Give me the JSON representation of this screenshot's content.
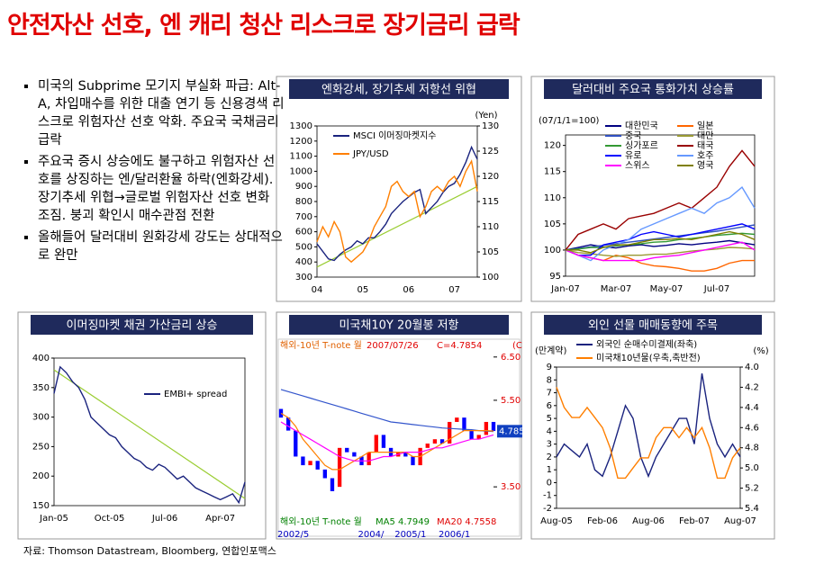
{
  "title": "안전자산 선호, 엔 캐리 청산 리스크로 장기금리 급락",
  "bullets": [
    "미국의 Subprime 모기지 부실화 파급: Alt-A, 차입매수를 위한 대출 연기 등 신용경색 리스크로 위험자산 선호 악화. 주요국 국채금리 급락",
    "주요국 증시 상승에도 불구하고 위험자산 선호를 상징하는 엔/달러환율 하락(엔화강세). 장기추세 위협→글로벌 위험자산 선호 변화 조짐. 붕괴 확인시 매수관점 전환",
    "올해들어 달러대비 원화강세 강도는 상대적으로 완만"
  ],
  "source": "자료: Thomson Datastream, Bloomberg, 연합인포맥스",
  "chart_data": [
    {
      "type": "line",
      "title": "엔화강세, 장기추세 저항선 위협",
      "y2_label": "(Yen)",
      "categories": [
        "04",
        null,
        null,
        null,
        null,
        null,
        null,
        null,
        "05",
        null,
        null,
        null,
        null,
        null,
        null,
        null,
        "06",
        null,
        null,
        null,
        null,
        null,
        null,
        null,
        "07",
        null,
        null,
        null,
        null
      ],
      "series": [
        {
          "name": "MSCI 이머징마켓지수",
          "color": "#1a237e",
          "values": [
            520,
            470,
            420,
            410,
            450,
            480,
            500,
            540,
            520,
            560,
            560,
            600,
            650,
            720,
            760,
            800,
            830,
            860,
            880,
            720,
            760,
            800,
            860,
            900,
            920,
            980,
            1060,
            1160,
            1080
          ]
        },
        {
          "name": "JPY/USD",
          "color": "#ff7f00",
          "axis": "y2",
          "values": [
            107,
            110,
            108,
            111,
            109,
            104,
            103,
            104,
            105,
            107,
            110,
            112,
            114,
            118,
            119,
            117,
            116,
            117,
            112,
            114,
            117,
            118,
            117,
            119,
            120,
            118,
            121,
            123,
            117
          ]
        }
      ],
      "trendline": {
        "color": "#9acd32",
        "axis": "y2",
        "values": [
          102,
          118
        ]
      },
      "ylim": [
        300,
        1300
      ],
      "yticks": [
        300,
        400,
        500,
        600,
        700,
        800,
        900,
        1000,
        1100,
        1200,
        1300
      ],
      "y2lim": [
        100,
        130
      ],
      "y2ticks": [
        100,
        105,
        110,
        115,
        120,
        125,
        130
      ]
    },
    {
      "type": "line",
      "title": "달러대비 주요국 통화가치 상승률",
      "subtitle": "(07/1/1=100)",
      "categories": [
        "Jan-07",
        null,
        null,
        null,
        "Mar-07",
        null,
        null,
        null,
        "May-07",
        null,
        null,
        null,
        "Jul-07",
        null,
        null,
        null
      ],
      "series": [
        {
          "name": "대한민국",
          "color": "#000080",
          "values": [
            100,
            100.5,
            101,
            100.6,
            100.4,
            100.8,
            101,
            100.7,
            100.9,
            101.2,
            101,
            101.3,
            101.5,
            101.8,
            101.4,
            101
          ]
        },
        {
          "name": "일본",
          "color": "#ff6600",
          "values": [
            100,
            99,
            98.5,
            98,
            99,
            98.5,
            97.5,
            97,
            96.8,
            96.5,
            96,
            96,
            96.5,
            97.5,
            98,
            98
          ]
        },
        {
          "name": "중국",
          "color": "#3050c0",
          "values": [
            100,
            100.3,
            100.6,
            100.9,
            101.2,
            101.5,
            101.8,
            102.1,
            102.4,
            102.7,
            103,
            103.3,
            103.6,
            104,
            104.4,
            104.8
          ]
        },
        {
          "name": "대만",
          "color": "#999933",
          "values": [
            100,
            99.5,
            99.3,
            99,
            98.8,
            99,
            99,
            99.2,
            99.2,
            99.5,
            99.8,
            100,
            100.2,
            100.5,
            100.4,
            100.2
          ]
        },
        {
          "name": "싱가포르",
          "color": "#339933",
          "values": [
            100,
            100.2,
            100.5,
            100.5,
            100.8,
            101,
            101.2,
            101.5,
            101.6,
            102,
            102.2,
            102.5,
            102.8,
            103,
            103.2,
            103
          ]
        },
        {
          "name": "태국",
          "color": "#990000",
          "values": [
            100,
            103,
            104,
            105,
            104,
            106,
            106.5,
            107,
            108,
            109,
            108,
            110,
            112,
            116,
            119,
            116
          ]
        },
        {
          "name": "유로",
          "color": "#0000ff",
          "values": [
            100,
            99,
            99,
            101,
            101.5,
            102,
            103,
            103.5,
            103,
            102.5,
            103,
            103.5,
            104,
            104.5,
            105,
            104
          ]
        },
        {
          "name": "호주",
          "color": "#6699ff",
          "values": [
            100,
            99,
            98,
            100,
            101,
            102,
            104,
            105,
            106,
            107,
            108,
            107,
            109,
            110,
            112,
            108
          ]
        },
        {
          "name": "스위스",
          "color": "#ff00ff",
          "values": [
            100,
            99,
            98.5,
            98,
            98,
            98,
            98,
            98.5,
            98.8,
            99,
            99.5,
            100,
            100.5,
            101,
            101.5,
            100
          ]
        },
        {
          "name": "영국",
          "color": "#808000",
          "values": [
            100,
            100,
            99.5,
            100.5,
            101,
            101,
            101.5,
            102,
            102,
            102.2,
            102,
            102.5,
            103,
            103.5,
            103,
            102
          ]
        }
      ],
      "ylim": [
        95,
        122
      ],
      "yticks": [
        95,
        100,
        105,
        110,
        115,
        120
      ]
    },
    {
      "type": "line",
      "title": "이머징마켓 채권 가산금리 상승",
      "categories": [
        "Jan-05",
        null,
        null,
        null,
        null,
        null,
        null,
        null,
        null,
        "Oct-05",
        null,
        null,
        null,
        null,
        null,
        null,
        null,
        null,
        "Jul-06",
        null,
        null,
        null,
        null,
        null,
        null,
        null,
        null,
        "Apr-07",
        null,
        null,
        null,
        null
      ],
      "series": [
        {
          "name": "EMBI+ spread",
          "color": "#1a237e",
          "values": [
            340,
            385,
            375,
            360,
            350,
            330,
            300,
            290,
            280,
            270,
            265,
            250,
            240,
            230,
            225,
            215,
            210,
            220,
            215,
            205,
            195,
            200,
            190,
            180,
            175,
            170,
            165,
            160,
            165,
            170,
            155,
            190
          ]
        }
      ],
      "trendline": {
        "color": "#9acd32",
        "values": [
          380,
          162
        ]
      },
      "ylim": [
        150,
        400
      ],
      "yticks": [
        150,
        200,
        250,
        300,
        350,
        400
      ]
    },
    {
      "type": "candlestick",
      "title": "미국채10Y 20월봉 저항",
      "header_texts": [
        "해외-10년 T-note 월",
        "2007/07/26",
        "C=4.7854",
        "(C"
      ],
      "footer_texts": [
        "해외-10년 T-note 월",
        "MA5 4.7949",
        "MA20 4.7558"
      ],
      "last_label": "4.785",
      "last_value": 4.785,
      "categories": [
        "2002/5",
        null,
        null,
        null,
        null,
        null,
        null,
        null,
        null,
        null,
        null,
        "2004/",
        null,
        null,
        null,
        null,
        "2005/1",
        null,
        null,
        null,
        null,
        null,
        "2006/1",
        null,
        null,
        null,
        null,
        null,
        null,
        null
      ],
      "open": [
        5.3,
        5.1,
        4.8,
        4.2,
        4.0,
        4.1,
        3.9,
        3.7,
        3.5,
        4.4,
        4.3,
        4.2,
        4.0,
        4.3,
        4.7,
        4.4,
        4.2,
        4.3,
        4.2,
        4.0,
        4.4,
        4.5,
        4.6,
        4.5,
        5.0,
        5.1,
        4.8,
        4.6,
        4.7,
        5.0
      ],
      "close": [
        5.1,
        4.8,
        4.2,
        4.0,
        4.1,
        3.9,
        3.7,
        3.4,
        4.4,
        4.3,
        4.2,
        4.0,
        4.3,
        4.7,
        4.4,
        4.2,
        4.3,
        4.2,
        4.0,
        4.4,
        4.5,
        4.6,
        4.5,
        5.0,
        5.1,
        4.8,
        4.6,
        4.7,
        5.0,
        4.79
      ],
      "up_color": "#ff0000",
      "down_color": "#0000ff",
      "series": [
        {
          "color": "#3355cc",
          "values": [
            5.75,
            5.7,
            5.65,
            5.6,
            5.55,
            5.5,
            5.45,
            5.4,
            5.35,
            5.3,
            5.25,
            5.2,
            5.15,
            5.1,
            5.05,
            5.0,
            4.98,
            4.96,
            4.94,
            4.92,
            4.9,
            4.88,
            4.86,
            4.85,
            4.84,
            4.83,
            4.82,
            4.8,
            4.79,
            4.78
          ]
        },
        {
          "color": "#ff8000",
          "values": [
            5.2,
            5.1,
            4.9,
            4.6,
            4.4,
            4.2,
            4.0,
            3.9,
            3.9,
            4.0,
            4.1,
            4.2,
            4.3,
            4.3,
            4.3,
            4.3,
            4.3,
            4.3,
            4.2,
            4.2,
            4.3,
            4.4,
            4.5,
            4.6,
            4.7,
            4.8,
            4.8,
            4.8,
            4.8,
            4.79
          ]
        },
        {
          "color": "#ff00ff",
          "values": [
            5.0,
            4.9,
            4.8,
            4.7,
            4.6,
            4.5,
            4.4,
            4.3,
            4.2,
            4.15,
            4.1,
            4.1,
            4.1,
            4.15,
            4.2,
            4.2,
            4.25,
            4.3,
            4.3,
            4.3,
            4.35,
            4.4,
            4.4,
            4.45,
            4.5,
            4.55,
            4.6,
            4.6,
            4.65,
            4.7
          ]
        }
      ],
      "ylim": [
        2.9,
        6.6
      ],
      "yticks": [
        {
          "value": 3.5,
          "label": "3.50"
        },
        {
          "value": 5.5,
          "label": "5.50"
        },
        {
          "value": 6.5,
          "label": "6.50"
        }
      ]
    },
    {
      "type": "line",
      "title": "외인 선물 매매동향에 주목",
      "y_label": "(만계약)",
      "y2_label": "(%)",
      "categories": [
        "Aug-05",
        null,
        null,
        null,
        null,
        null,
        "Feb-06",
        null,
        null,
        null,
        null,
        null,
        "Aug-06",
        null,
        null,
        null,
        null,
        null,
        "Feb-07",
        null,
        null,
        null,
        null,
        null,
        "Aug-07"
      ],
      "series": [
        {
          "name": "외국인 순매수미결제(좌축)",
          "color": "#1a237e",
          "values": [
            2,
            3,
            2.5,
            2,
            3,
            1,
            0.5,
            2,
            4,
            6,
            5,
            2,
            0.5,
            2,
            3,
            4,
            5,
            5,
            3,
            8.5,
            5,
            3,
            2,
            3,
            2
          ]
        },
        {
          "name": "미국채10년물(우축,축반전)",
          "color": "#ff7f00",
          "axis": "y2",
          "values": [
            4.2,
            4.4,
            4.5,
            4.5,
            4.4,
            4.5,
            4.6,
            4.8,
            5.1,
            5.1,
            5.0,
            4.9,
            4.9,
            4.7,
            4.6,
            4.6,
            4.7,
            4.6,
            4.7,
            4.6,
            4.8,
            5.1,
            5.1,
            4.9,
            4.8
          ]
        }
      ],
      "ylim": [
        -2,
        9
      ],
      "yticks": [
        -2,
        -1,
        0,
        1,
        2,
        3,
        4,
        5,
        6,
        7,
        8,
        9
      ],
      "y2lim": [
        5.4,
        4.0
      ],
      "y2ticks": [
        {
          "value": 4.0,
          "label": "4.0"
        },
        4.2,
        4.4,
        4.6,
        4.8,
        {
          "value": 5.0,
          "label": "5.0"
        },
        5.2,
        5.4
      ]
    }
  ]
}
